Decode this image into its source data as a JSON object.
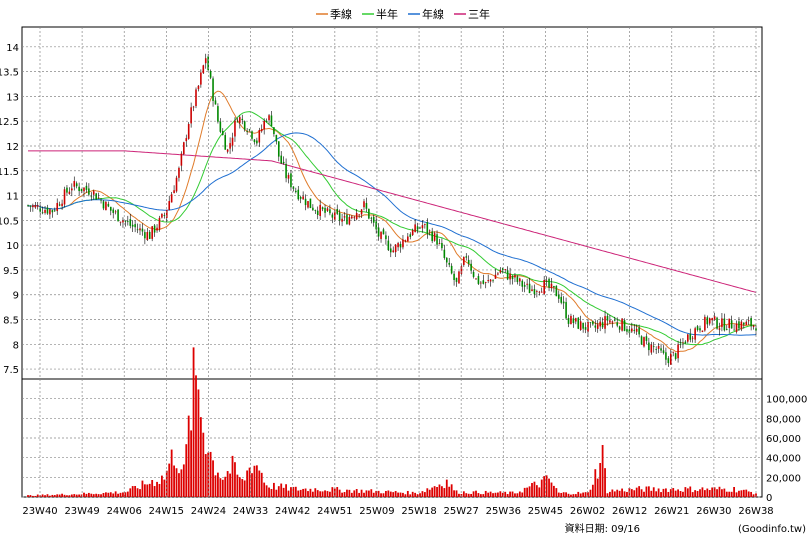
{
  "chart_data": {
    "type": "candlestick",
    "legend": [
      {
        "name": "季線",
        "color": "#e07b2a"
      },
      {
        "name": "半年",
        "color": "#33cc33"
      },
      {
        "name": "年線",
        "color": "#1f6fd1"
      },
      {
        "name": "三年",
        "color": "#cc2277"
      }
    ],
    "price_axis": {
      "ylim": [
        7.3,
        14.4
      ],
      "ticks": [
        7.5,
        8,
        8.5,
        9,
        9.5,
        10,
        10.5,
        11,
        11.5,
        12,
        12.5,
        13,
        13.5,
        14
      ]
    },
    "volume_axis": {
      "ylim": [
        0,
        120000
      ],
      "ticks": [
        0,
        20000,
        40000,
        60000,
        80000,
        100000
      ],
      "tick_labels": [
        "0",
        "20,000",
        "40,000",
        "60,000",
        "80,000",
        "100,000"
      ]
    },
    "x_ticks": [
      "23W40",
      "23W49",
      "24W06",
      "24W15",
      "24W24",
      "24W33",
      "24W42",
      "24W51",
      "25W09",
      "25W18",
      "25W27",
      "25W36",
      "25W45",
      "26W02",
      "26W12",
      "26W21",
      "26W30",
      "26W38"
    ],
    "grid": true,
    "colors": {
      "up": "#cc0000",
      "down": "#008800",
      "volume": "#dd0000",
      "grid": "#888888"
    },
    "price_anchors": [
      [
        0,
        10.8
      ],
      [
        10,
        10.7
      ],
      [
        18,
        11.2
      ],
      [
        26,
        11.1
      ],
      [
        34,
        10.7
      ],
      [
        42,
        10.4
      ],
      [
        50,
        10.2
      ],
      [
        56,
        10.6
      ],
      [
        62,
        11.5
      ],
      [
        66,
        12.5
      ],
      [
        70,
        13.2
      ],
      [
        73,
        13.8
      ],
      [
        78,
        12.5
      ],
      [
        82,
        11.9
      ],
      [
        86,
        12.6
      ],
      [
        90,
        12.4
      ],
      [
        94,
        12.1
      ],
      [
        98,
        12.6
      ],
      [
        100,
        12.5
      ],
      [
        103,
        11.8
      ],
      [
        106,
        11.4
      ],
      [
        110,
        11.1
      ],
      [
        116,
        10.8
      ],
      [
        124,
        10.6
      ],
      [
        130,
        10.5
      ],
      [
        138,
        10.8
      ],
      [
        144,
        10.2
      ],
      [
        150,
        9.9
      ],
      [
        156,
        10.2
      ],
      [
        162,
        10.4
      ],
      [
        168,
        10.1
      ],
      [
        172,
        9.6
      ],
      [
        176,
        9.2
      ],
      [
        180,
        9.8
      ],
      [
        184,
        9.3
      ],
      [
        188,
        9.2
      ],
      [
        194,
        9.5
      ],
      [
        200,
        9.3
      ],
      [
        206,
        9.1
      ],
      [
        212,
        9.2
      ],
      [
        218,
        9.0
      ],
      [
        222,
        8.5
      ],
      [
        226,
        8.4
      ],
      [
        232,
        8.3
      ],
      [
        238,
        8.5
      ],
      [
        244,
        8.4
      ],
      [
        250,
        8.2
      ],
      [
        254,
        8.0
      ],
      [
        258,
        7.9
      ],
      [
        262,
        7.7
      ],
      [
        266,
        7.8
      ],
      [
        270,
        8.1
      ],
      [
        274,
        8.3
      ],
      [
        280,
        8.5
      ],
      [
        284,
        8.4
      ],
      [
        288,
        8.4
      ],
      [
        292,
        8.4
      ],
      [
        296,
        8.4
      ],
      [
        299,
        8.4
      ]
    ],
    "volume_anchors": [
      [
        0,
        1500
      ],
      [
        20,
        3000
      ],
      [
        40,
        5000
      ],
      [
        50,
        15000
      ],
      [
        56,
        20000
      ],
      [
        60,
        45000
      ],
      [
        64,
        25000
      ],
      [
        68,
        110000
      ],
      [
        70,
        112000
      ],
      [
        72,
        70000
      ],
      [
        74,
        55000
      ],
      [
        76,
        35000
      ],
      [
        80,
        20000
      ],
      [
        84,
        30000
      ],
      [
        88,
        15000
      ],
      [
        92,
        35000
      ],
      [
        95,
        30000
      ],
      [
        98,
        12000
      ],
      [
        104,
        10000
      ],
      [
        110,
        8000
      ],
      [
        120,
        8000
      ],
      [
        140,
        6000
      ],
      [
        160,
        4000
      ],
      [
        172,
        16000
      ],
      [
        176,
        5000
      ],
      [
        200,
        4000
      ],
      [
        214,
        18000
      ],
      [
        218,
        4000
      ],
      [
        230,
        4000
      ],
      [
        236,
        42000
      ],
      [
        238,
        6000
      ],
      [
        250,
        8000
      ],
      [
        270,
        8000
      ],
      [
        290,
        8000
      ],
      [
        299,
        4000
      ]
    ]
  },
  "footer": {
    "date_text": "資料日期: 09/16",
    "source_text": "(Goodinfo.tw)"
  }
}
